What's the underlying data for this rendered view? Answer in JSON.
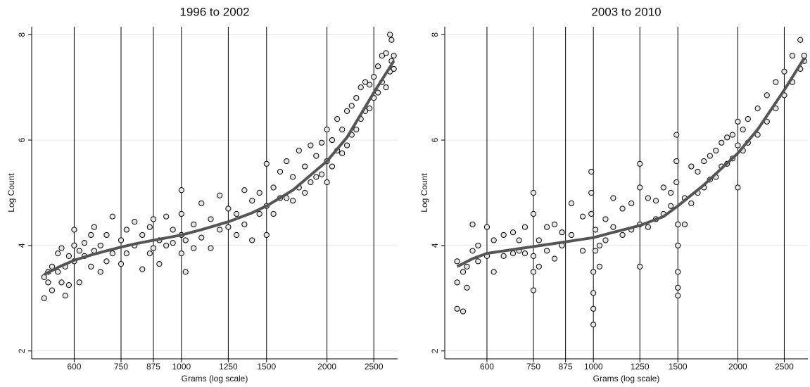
{
  "chart_data": [
    {
      "type": "scatter",
      "title": "1996 to 2002",
      "xlabel": "Grams (log scale)",
      "ylabel": "Log Count",
      "log_x": true,
      "grid": true,
      "xlim": [
        490,
        2800
      ],
      "ylim": [
        1.85,
        8.15
      ],
      "xticks": [
        600,
        750,
        875,
        1000,
        1250,
        1500,
        2000,
        2500
      ],
      "yticks": [
        2,
        4,
        6,
        8
      ],
      "series": [
        {
          "color": "#e6e6e6",
          "x": [
            520,
            520,
            530,
            530,
            540,
            540,
            555,
            555,
            565,
            565,
            575,
            575,
            585,
            585,
            600,
            600,
            600,
            615,
            615,
            630,
            630,
            650,
            650,
            660,
            660,
            680,
            680,
            700,
            700,
            720,
            720,
            750,
            750,
            770,
            770,
            800,
            800,
            830,
            830,
            860,
            860,
            875,
            875,
            900,
            900,
            930,
            930,
            960,
            960,
            1000,
            1000,
            1000,
            1000,
            1020,
            1020,
            1060,
            1060,
            1100,
            1100,
            1150,
            1150,
            1200,
            1200,
            1250,
            1250,
            1300,
            1300,
            1350,
            1350,
            1400,
            1400,
            1450,
            1450,
            1500,
            1500,
            1500,
            1550,
            1550,
            1600,
            1600,
            1650,
            1650,
            1700,
            1700,
            1750,
            1750,
            1800,
            1800,
            1850,
            1850,
            1900,
            1900,
            1950,
            1950,
            2000,
            2000,
            2000,
            2050,
            2050,
            2100,
            2100,
            2150,
            2150,
            2200,
            2200,
            2250,
            2250,
            2300,
            2300,
            2350,
            2350,
            2400,
            2400,
            2450,
            2450,
            2500,
            2500,
            2550,
            2550,
            2600,
            2600,
            2650,
            2650,
            2700,
            2700,
            2720,
            2720,
            2750,
            2750
          ],
          "values": [
            3.0,
            3.4,
            3.5,
            3.3,
            3.6,
            3.15,
            3.85,
            3.5,
            3.95,
            3.3,
            3.6,
            3.05,
            3.8,
            3.25,
            4.3,
            3.7,
            4.0,
            3.3,
            3.9,
            3.8,
            4.05,
            4.2,
            3.6,
            4.35,
            3.9,
            4.0,
            3.5,
            4.2,
            3.7,
            4.55,
            3.85,
            4.1,
            3.65,
            4.3,
            3.85,
            4.45,
            4.0,
            4.2,
            3.55,
            4.35,
            3.85,
            4.5,
            3.95,
            4.1,
            3.65,
            4.55,
            4.0,
            4.3,
            4.05,
            5.05,
            4.6,
            4.2,
            3.85,
            3.5,
            4.1,
            4.4,
            3.95,
            4.8,
            4.15,
            4.5,
            3.95,
            4.95,
            4.3,
            4.7,
            4.35,
            4.6,
            4.2,
            5.05,
            4.4,
            4.85,
            4.1,
            5.0,
            4.6,
            5.55,
            4.75,
            4.2,
            5.1,
            4.6,
            5.4,
            4.9,
            5.6,
            4.9,
            5.3,
            4.85,
            5.8,
            5.1,
            5.5,
            5.0,
            5.9,
            5.2,
            5.7,
            5.3,
            5.95,
            5.35,
            6.2,
            5.6,
            5.2,
            6.0,
            5.5,
            6.4,
            5.8,
            6.2,
            5.75,
            6.55,
            5.9,
            6.65,
            6.1,
            6.8,
            6.2,
            7.0,
            6.4,
            7.1,
            6.55,
            7.05,
            6.6,
            7.2,
            6.8,
            7.4,
            6.9,
            7.6,
            7.1,
            7.65,
            7.0,
            8.0,
            7.3,
            7.9,
            7.5,
            7.6,
            7.35
          ]
        },
        {
          "color": "#555555",
          "line": true,
          "x": [
            520,
            560,
            600,
            650,
            700,
            750,
            800,
            875,
            950,
            1000,
            1100,
            1250,
            1400,
            1500,
            1700,
            2000,
            2200,
            2500,
            2750
          ],
          "values": [
            3.45,
            3.6,
            3.72,
            3.82,
            3.9,
            3.97,
            4.03,
            4.1,
            4.16,
            4.2,
            4.3,
            4.45,
            4.62,
            4.75,
            5.05,
            5.6,
            6.05,
            6.9,
            7.5
          ]
        }
      ]
    },
    {
      "type": "scatter",
      "title": "2003 to 2010",
      "xlabel": "Grams (log scale)",
      "ylabel": "Log Count",
      "log_x": true,
      "grid": true,
      "xlim": [
        490,
        2800
      ],
      "ylim": [
        1.85,
        8.15
      ],
      "xticks": [
        600,
        750,
        875,
        1000,
        1250,
        1500,
        2000,
        2500
      ],
      "yticks": [
        2,
        4,
        6,
        8
      ],
      "series": [
        {
          "color": "#e6e6e6",
          "x": [
            520,
            520,
            520,
            535,
            535,
            545,
            545,
            560,
            560,
            575,
            575,
            600,
            600,
            620,
            620,
            650,
            650,
            680,
            680,
            700,
            700,
            720,
            720,
            750,
            750,
            750,
            750,
            750,
            770,
            770,
            800,
            800,
            830,
            830,
            860,
            860,
            900,
            900,
            950,
            950,
            990,
            990,
            990,
            1000,
            1000,
            1000,
            1000,
            1010,
            1010,
            1030,
            1030,
            1060,
            1060,
            1100,
            1100,
            1150,
            1150,
            1200,
            1200,
            1250,
            1250,
            1250,
            1250,
            1300,
            1300,
            1350,
            1350,
            1400,
            1400,
            1450,
            1450,
            1490,
            1490,
            1490,
            1500,
            1500,
            1500,
            1500,
            1500,
            1550,
            1550,
            1600,
            1600,
            1650,
            1650,
            1700,
            1700,
            1750,
            1750,
            1800,
            1800,
            1850,
            1850,
            1900,
            1900,
            1950,
            1950,
            2000,
            2000,
            2000,
            2050,
            2050,
            2100,
            2100,
            2200,
            2200,
            2300,
            2300,
            2400,
            2400,
            2500,
            2500,
            2600,
            2600,
            2700,
            2700,
            2750,
            2750
          ],
          "values": [
            2.8,
            3.3,
            3.7,
            2.75,
            3.5,
            3.2,
            3.6,
            4.4,
            3.9,
            4.0,
            3.7,
            4.35,
            3.8,
            4.1,
            3.5,
            4.2,
            3.8,
            4.25,
            3.85,
            4.1,
            3.9,
            4.35,
            3.85,
            5.0,
            4.6,
            3.5,
            3.15,
            3.8,
            3.6,
            4.1,
            4.35,
            3.9,
            4.4,
            3.75,
            4.25,
            4.0,
            4.8,
            4.2,
            4.55,
            3.9,
            5.4,
            5.0,
            4.6,
            3.1,
            2.8,
            2.5,
            3.5,
            3.9,
            4.3,
            3.6,
            4.0,
            4.5,
            4.1,
            4.9,
            4.35,
            4.7,
            4.2,
            4.8,
            4.3,
            5.55,
            5.1,
            4.4,
            3.6,
            4.9,
            4.35,
            4.85,
            4.5,
            5.1,
            4.6,
            5.0,
            4.75,
            6.1,
            5.6,
            5.2,
            3.2,
            3.05,
            3.5,
            4.0,
            4.4,
            4.9,
            4.4,
            5.5,
            4.8,
            5.4,
            5.0,
            5.6,
            5.1,
            5.7,
            5.25,
            5.8,
            5.3,
            5.95,
            5.5,
            6.05,
            5.55,
            6.1,
            5.65,
            6.35,
            5.9,
            5.1,
            6.2,
            5.8,
            6.4,
            5.95,
            6.6,
            6.1,
            6.85,
            6.35,
            7.1,
            6.6,
            7.3,
            6.85,
            7.6,
            7.1,
            7.9,
            7.35,
            7.6,
            7.5
          ]
        },
        {
          "color": "#555555",
          "line": true,
          "x": [
            520,
            560,
            600,
            700,
            750,
            875,
            1000,
            1100,
            1250,
            1400,
            1500,
            1700,
            2000,
            2200,
            2500,
            2750
          ],
          "values": [
            3.6,
            3.75,
            3.85,
            3.94,
            3.98,
            4.07,
            4.15,
            4.25,
            4.38,
            4.55,
            4.75,
            5.15,
            5.75,
            6.2,
            6.95,
            7.55
          ]
        }
      ]
    }
  ]
}
